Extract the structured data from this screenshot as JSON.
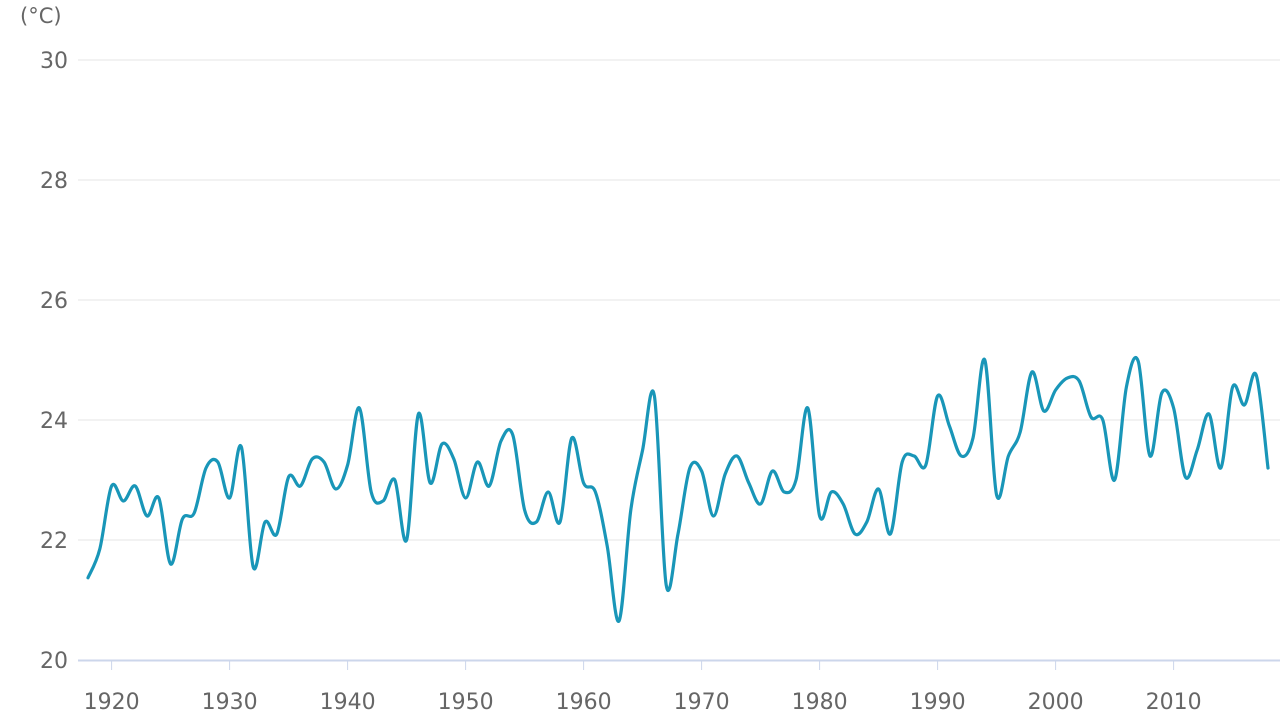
{
  "chart_data": {
    "type": "line",
    "title": "",
    "unit_label": "(°C)",
    "xlabel": "",
    "ylabel": "",
    "xlim": [
      1918,
      2018
    ],
    "ylim": [
      20,
      30
    ],
    "y_ticks": [
      20,
      22,
      24,
      26,
      28,
      30
    ],
    "x_ticks": [
      1920,
      1930,
      1940,
      1950,
      1960,
      1970,
      1980,
      1990,
      2000,
      2010
    ],
    "grid": true,
    "legend": "none",
    "colors": {
      "series": "#1996b8",
      "grid": "#e6e6e6",
      "axis": "#ccd6eb",
      "text": "#666666"
    },
    "series": [
      {
        "x": [
          1918,
          1919,
          1920,
          1921,
          1922,
          1923,
          1924,
          1925,
          1926,
          1927,
          1928,
          1929,
          1930,
          1931,
          1932,
          1933,
          1934,
          1935,
          1936,
          1937,
          1938,
          1939,
          1940,
          1941,
          1942,
          1943,
          1944,
          1945,
          1946,
          1947,
          1948,
          1949,
          1950,
          1951,
          1952,
          1953,
          1954,
          1955,
          1956,
          1957,
          1958,
          1959,
          1960,
          1961,
          1962,
          1963,
          1964,
          1965,
          1966,
          1967,
          1968,
          1969,
          1970,
          1971,
          1972,
          1973,
          1974,
          1975,
          1976,
          1977,
          1978,
          1979,
          1980,
          1981,
          1982,
          1983,
          1984,
          1985,
          1986,
          1987,
          1988,
          1989,
          1990,
          1991,
          1992,
          1993,
          1994,
          1995,
          1996,
          1997,
          1998,
          1999,
          2000,
          2001,
          2002,
          2003,
          2004,
          2005,
          2006,
          2007,
          2008,
          2009,
          2010,
          2011,
          2012,
          2013,
          2014,
          2015,
          2016,
          2017,
          2018
        ],
        "values": [
          21.37,
          21.85,
          22.9,
          22.65,
          22.9,
          22.4,
          22.7,
          21.6,
          22.35,
          22.45,
          23.2,
          23.3,
          22.7,
          23.55,
          21.55,
          22.3,
          22.1,
          23.05,
          22.9,
          23.35,
          23.3,
          22.85,
          23.25,
          24.2,
          22.8,
          22.65,
          23.0,
          22.0,
          24.1,
          22.95,
          23.6,
          23.35,
          22.7,
          23.3,
          22.9,
          23.65,
          23.75,
          22.5,
          22.3,
          22.8,
          22.3,
          23.7,
          22.95,
          22.8,
          21.9,
          20.65,
          22.5,
          23.5,
          24.4,
          21.25,
          22.1,
          23.2,
          23.15,
          22.4,
          23.1,
          23.4,
          22.95,
          22.6,
          23.15,
          22.8,
          23.0,
          24.2,
          22.4,
          22.8,
          22.6,
          22.1,
          22.3,
          22.85,
          22.1,
          23.3,
          23.4,
          23.25,
          24.4,
          23.9,
          23.4,
          23.7,
          25.0,
          22.75,
          23.4,
          23.8,
          24.8,
          24.15,
          24.5,
          24.7,
          24.65,
          24.05,
          24.0,
          23.0,
          24.55,
          24.98,
          23.4,
          24.45,
          24.2,
          23.05,
          23.5,
          24.1,
          23.2,
          24.55,
          24.25,
          24.75,
          23.2
        ]
      }
    ]
  }
}
